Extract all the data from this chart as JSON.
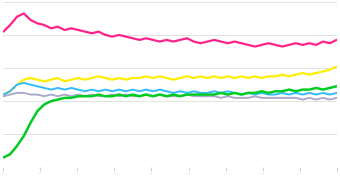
{
  "n_points": 50,
  "background_color": "#ffffff",
  "grid_color": "#dddddd",
  "lines": {
    "pink": {
      "color": "#ff2288",
      "linewidth": 1.6,
      "points": [
        0.82,
        0.86,
        0.91,
        0.93,
        0.89,
        0.87,
        0.86,
        0.84,
        0.85,
        0.83,
        0.84,
        0.83,
        0.82,
        0.81,
        0.82,
        0.8,
        0.79,
        0.8,
        0.79,
        0.78,
        0.77,
        0.78,
        0.77,
        0.76,
        0.77,
        0.76,
        0.77,
        0.78,
        0.76,
        0.75,
        0.76,
        0.77,
        0.76,
        0.75,
        0.76,
        0.75,
        0.74,
        0.73,
        0.74,
        0.75,
        0.74,
        0.73,
        0.74,
        0.75,
        0.74,
        0.75,
        0.74,
        0.76,
        0.75,
        0.77
      ]
    },
    "yellow": {
      "color": "#ffee00",
      "linewidth": 1.6,
      "points": [
        0.44,
        0.46,
        0.5,
        0.53,
        0.54,
        0.53,
        0.52,
        0.53,
        0.54,
        0.52,
        0.53,
        0.54,
        0.53,
        0.54,
        0.55,
        0.54,
        0.53,
        0.54,
        0.53,
        0.54,
        0.54,
        0.55,
        0.54,
        0.55,
        0.54,
        0.53,
        0.54,
        0.55,
        0.54,
        0.55,
        0.54,
        0.55,
        0.54,
        0.55,
        0.54,
        0.55,
        0.54,
        0.55,
        0.54,
        0.55,
        0.55,
        0.56,
        0.55,
        0.56,
        0.57,
        0.56,
        0.57,
        0.58,
        0.59,
        0.61
      ]
    },
    "blue": {
      "color": "#33bbff",
      "linewidth": 1.4,
      "points": [
        0.44,
        0.46,
        0.5,
        0.51,
        0.5,
        0.49,
        0.48,
        0.47,
        0.48,
        0.47,
        0.48,
        0.47,
        0.46,
        0.47,
        0.46,
        0.47,
        0.46,
        0.47,
        0.46,
        0.47,
        0.46,
        0.47,
        0.46,
        0.47,
        0.46,
        0.45,
        0.46,
        0.45,
        0.46,
        0.45,
        0.45,
        0.46,
        0.45,
        0.46,
        0.45,
        0.44,
        0.45,
        0.44,
        0.45,
        0.44,
        0.44,
        0.45,
        0.44,
        0.45,
        0.44,
        0.45,
        0.44,
        0.45,
        0.44,
        0.45
      ]
    },
    "gray": {
      "color": "#aaaacc",
      "linewidth": 1.4,
      "points": [
        0.43,
        0.44,
        0.45,
        0.45,
        0.44,
        0.44,
        0.43,
        0.44,
        0.43,
        0.44,
        0.43,
        0.44,
        0.43,
        0.44,
        0.43,
        0.43,
        0.44,
        0.43,
        0.44,
        0.43,
        0.43,
        0.44,
        0.43,
        0.44,
        0.43,
        0.43,
        0.43,
        0.44,
        0.43,
        0.43,
        0.43,
        0.43,
        0.42,
        0.43,
        0.42,
        0.42,
        0.42,
        0.43,
        0.42,
        0.42,
        0.42,
        0.42,
        0.42,
        0.42,
        0.41,
        0.42,
        0.41,
        0.42,
        0.41,
        0.42
      ]
    },
    "green": {
      "color": "#00cc22",
      "linewidth": 1.8,
      "points": [
        0.06,
        0.08,
        0.13,
        0.19,
        0.27,
        0.34,
        0.38,
        0.4,
        0.41,
        0.42,
        0.42,
        0.43,
        0.43,
        0.43,
        0.44,
        0.43,
        0.43,
        0.44,
        0.43,
        0.44,
        0.43,
        0.44,
        0.43,
        0.44,
        0.43,
        0.44,
        0.43,
        0.44,
        0.44,
        0.44,
        0.44,
        0.44,
        0.45,
        0.44,
        0.45,
        0.44,
        0.45,
        0.45,
        0.46,
        0.45,
        0.46,
        0.46,
        0.47,
        0.46,
        0.47,
        0.47,
        0.48,
        0.47,
        0.48,
        0.49
      ]
    }
  },
  "ylim": [
    0.0,
    1.0
  ],
  "xlim": [
    0,
    49
  ],
  "n_xticks": 10,
  "grid_n": 5
}
